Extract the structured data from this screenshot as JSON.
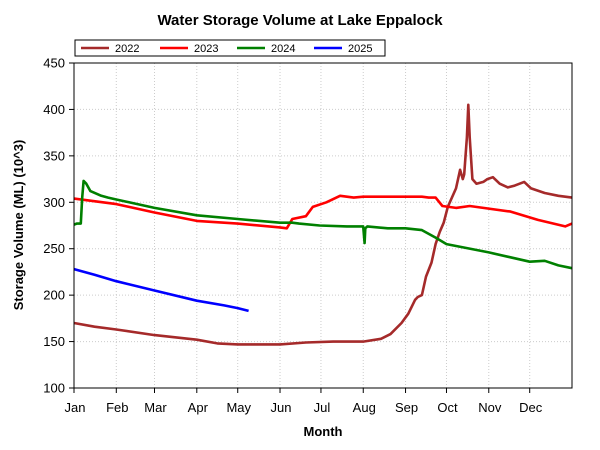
{
  "chart_data": {
    "type": "line",
    "title": "Water Storage Volume at Lake Eppalock",
    "xlabel": "Month",
    "ylabel": "Storage Volume (ML) (10^3)",
    "ylim": [
      100,
      450
    ],
    "yticks": [
      100,
      150,
      200,
      250,
      300,
      350,
      400,
      450
    ],
    "xlim": [
      0,
      365
    ],
    "xticks": [
      {
        "label": "Jan",
        "day": 0
      },
      {
        "label": "Feb",
        "day": 31
      },
      {
        "label": "Mar",
        "day": 59
      },
      {
        "label": "Apr",
        "day": 90
      },
      {
        "label": "May",
        "day": 120
      },
      {
        "label": "Jun",
        "day": 151
      },
      {
        "label": "Jul",
        "day": 181
      },
      {
        "label": "Aug",
        "day": 212
      },
      {
        "label": "Sep",
        "day": 243
      },
      {
        "label": "Oct",
        "day": 273
      },
      {
        "label": "Nov",
        "day": 304
      },
      {
        "label": "Dec",
        "day": 334
      }
    ],
    "grid": true,
    "legend_position": "top-left",
    "series": [
      {
        "name": "2022",
        "color": "#a52a2a",
        "points": [
          [
            0,
            170
          ],
          [
            15,
            166
          ],
          [
            31,
            163
          ],
          [
            59,
            157
          ],
          [
            90,
            152
          ],
          [
            105,
            148
          ],
          [
            120,
            147
          ],
          [
            151,
            147
          ],
          [
            170,
            149
          ],
          [
            190,
            150
          ],
          [
            212,
            150
          ],
          [
            225,
            153
          ],
          [
            232,
            158
          ],
          [
            240,
            170
          ],
          [
            245,
            180
          ],
          [
            250,
            195
          ],
          [
            252,
            198
          ],
          [
            255,
            200
          ],
          [
            258,
            220
          ],
          [
            262,
            235
          ],
          [
            265,
            255
          ],
          [
            268,
            268
          ],
          [
            271,
            278
          ],
          [
            274,
            295
          ],
          [
            277,
            305
          ],
          [
            280,
            315
          ],
          [
            283,
            335
          ],
          [
            285,
            325
          ],
          [
            286,
            330
          ],
          [
            288,
            370
          ],
          [
            289,
            405
          ],
          [
            290,
            370
          ],
          [
            292,
            325
          ],
          [
            295,
            320
          ],
          [
            300,
            322
          ],
          [
            303,
            325
          ],
          [
            307,
            327
          ],
          [
            312,
            320
          ],
          [
            318,
            316
          ],
          [
            323,
            318
          ],
          [
            330,
            322
          ],
          [
            335,
            315
          ],
          [
            345,
            310
          ],
          [
            355,
            307
          ],
          [
            365,
            305
          ]
        ]
      },
      {
        "name": "2023",
        "color": "#ff0000",
        "points": [
          [
            0,
            304
          ],
          [
            31,
            298
          ],
          [
            59,
            289
          ],
          [
            90,
            280
          ],
          [
            120,
            277
          ],
          [
            151,
            273
          ],
          [
            156,
            272
          ],
          [
            160,
            282
          ],
          [
            170,
            285
          ],
          [
            175,
            295
          ],
          [
            185,
            300
          ],
          [
            195,
            307
          ],
          [
            205,
            305
          ],
          [
            212,
            306
          ],
          [
            230,
            306
          ],
          [
            255,
            306
          ],
          [
            260,
            305
          ],
          [
            265,
            305
          ],
          [
            270,
            296
          ],
          [
            280,
            294
          ],
          [
            290,
            296
          ],
          [
            300,
            294
          ],
          [
            320,
            290
          ],
          [
            340,
            281
          ],
          [
            360,
            274
          ],
          [
            365,
            277
          ]
        ]
      },
      {
        "name": "2024",
        "color": "#008000",
        "points": [
          [
            0,
            276
          ],
          [
            2,
            277
          ],
          [
            5,
            277
          ],
          [
            6,
            305
          ],
          [
            7,
            323
          ],
          [
            9,
            320
          ],
          [
            12,
            312
          ],
          [
            20,
            307
          ],
          [
            25,
            305
          ],
          [
            31,
            303
          ],
          [
            59,
            294
          ],
          [
            90,
            286
          ],
          [
            120,
            282
          ],
          [
            151,
            278
          ],
          [
            160,
            278
          ],
          [
            165,
            277
          ],
          [
            180,
            275
          ],
          [
            200,
            274
          ],
          [
            212,
            274
          ],
          [
            213,
            256
          ],
          [
            213.5,
            272
          ],
          [
            215,
            274
          ],
          [
            230,
            272
          ],
          [
            243,
            272
          ],
          [
            255,
            270
          ],
          [
            265,
            262
          ],
          [
            273,
            255
          ],
          [
            304,
            246
          ],
          [
            334,
            236
          ],
          [
            345,
            237
          ],
          [
            355,
            232
          ],
          [
            365,
            229
          ]
        ]
      },
      {
        "name": "2025",
        "color": "#0000ff",
        "points": [
          [
            0,
            228
          ],
          [
            15,
            222
          ],
          [
            31,
            215
          ],
          [
            59,
            205
          ],
          [
            90,
            194
          ],
          [
            110,
            189
          ],
          [
            120,
            186
          ],
          [
            128,
            183
          ]
        ]
      }
    ]
  }
}
